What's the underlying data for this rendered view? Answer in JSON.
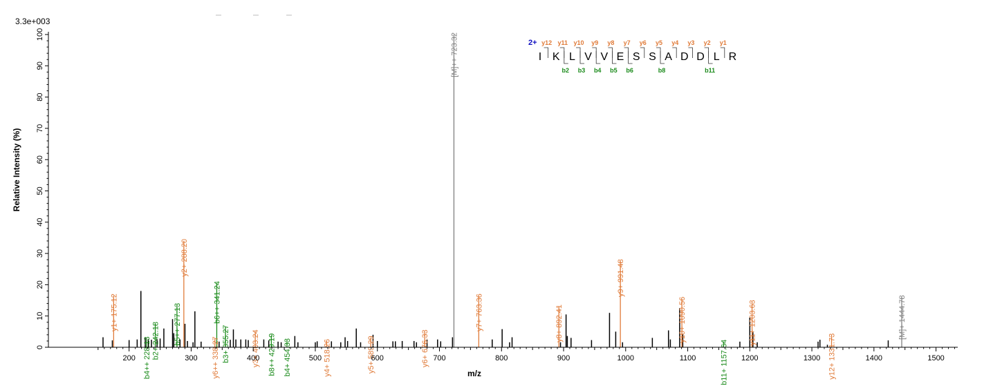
{
  "chart_data": {
    "type": "bar",
    "max_intensity_label": "3.3e+003",
    "xlabel": "m/z",
    "ylabel": "Relative   Intensity (%)",
    "xlim": [
      70,
      1535
    ],
    "ylim": [
      0,
      100
    ],
    "x_ticks": [
      200,
      300,
      400,
      500,
      600,
      700,
      800,
      900,
      1000,
      1100,
      1200,
      1300,
      1400,
      1500
    ],
    "y_ticks": [
      0,
      10,
      20,
      30,
      40,
      50,
      60,
      70,
      80,
      90,
      100
    ],
    "grid": false,
    "colors": {
      "y_ion": "#e07b39",
      "b_ion": "#1a8a1a",
      "precursor": "#808080",
      "other": "#000000"
    },
    "annotated_peaks": [
      {
        "mz": 175.12,
        "intensity": 16.5,
        "kind": "y",
        "label": "y1+ 175.12"
      },
      {
        "mz": 228.13,
        "intensity": 2.8,
        "kind": "b",
        "label": "b4++ 228.13"
      },
      {
        "mz": 242.18,
        "intensity": 7.5,
        "kind": "b",
        "label": "b2+ 242.18"
      },
      {
        "mz": 277.13,
        "intensity": 13.5,
        "kind": "b",
        "label": "b5++ 277.13"
      },
      {
        "mz": 288.2,
        "intensity": 34.0,
        "kind": "y",
        "label": "y2+ 288.20"
      },
      {
        "mz": 338.27,
        "intensity": 2.8,
        "kind": "y",
        "label": "y6++ 338.27"
      },
      {
        "mz": 341.24,
        "intensity": 20.5,
        "kind": "b",
        "label": "b6++ 341.24"
      },
      {
        "mz": 355.27,
        "intensity": 6.5,
        "kind": "b",
        "label": "b3+ 355.27"
      },
      {
        "mz": 403.24,
        "intensity": 5.0,
        "kind": "y",
        "label": "y3+ 403.24"
      },
      {
        "mz": 429.19,
        "intensity": 3.8,
        "kind": "b",
        "label": "b8++ 429.19"
      },
      {
        "mz": 454.33,
        "intensity": 2.2,
        "kind": "b",
        "label": "b4+ 454.33"
      },
      {
        "mz": 518.26,
        "intensity": 2.0,
        "kind": "y",
        "label": "y4+ 518.26"
      },
      {
        "mz": 589.29,
        "intensity": 3.0,
        "kind": "y",
        "label": "y5+ 589.29"
      },
      {
        "mz": 676.33,
        "intensity": 5.0,
        "kind": "y",
        "label": "y6+ 676.33"
      },
      {
        "mz": 723.32,
        "intensity": 100,
        "kind": "precursor",
        "label": "[M]++ 723.32"
      },
      {
        "mz": 763.36,
        "intensity": 16.5,
        "kind": "y",
        "label": "y7+ 763.36"
      },
      {
        "mz": 892.41,
        "intensity": 13.0,
        "kind": "y",
        "label": "y8+ 892.41"
      },
      {
        "mz": 991.48,
        "intensity": 27.5,
        "kind": "y",
        "label": "y9+ 991.48"
      },
      {
        "mz": 1090.56,
        "intensity": 15.5,
        "kind": "y",
        "label": "y10+ 1090.56"
      },
      {
        "mz": 1157.64,
        "intensity": 1.8,
        "kind": "b",
        "label": "b11+ 1157.64"
      },
      {
        "mz": 1203.63,
        "intensity": 14.5,
        "kind": "y",
        "label": "y11+ 1203.63"
      },
      {
        "mz": 1331.73,
        "intensity": 3.8,
        "kind": "y",
        "label": "y12+ 1331.73"
      },
      {
        "mz": 1444.78,
        "intensity": 16.0,
        "kind": "precursor",
        "label": "[M]+ 1444.78"
      }
    ],
    "other_peaks": [
      {
        "mz": 158,
        "intensity": 3.2
      },
      {
        "mz": 173,
        "intensity": 2.2
      },
      {
        "mz": 200,
        "intensity": 2.3
      },
      {
        "mz": 213,
        "intensity": 2.5
      },
      {
        "mz": 219,
        "intensity": 18.0
      },
      {
        "mz": 226,
        "intensity": 3.0
      },
      {
        "mz": 231,
        "intensity": 2.6
      },
      {
        "mz": 236,
        "intensity": 2.4
      },
      {
        "mz": 245,
        "intensity": 2.6
      },
      {
        "mz": 250,
        "intensity": 2.8
      },
      {
        "mz": 256,
        "intensity": 6.0
      },
      {
        "mz": 270,
        "intensity": 9.0
      },
      {
        "mz": 272,
        "intensity": 4.5
      },
      {
        "mz": 282,
        "intensity": 2.5
      },
      {
        "mz": 290,
        "intensity": 7.5
      },
      {
        "mz": 294,
        "intensity": 2.0
      },
      {
        "mz": 303,
        "intensity": 1.6
      },
      {
        "mz": 306,
        "intensity": 11.5
      },
      {
        "mz": 316,
        "intensity": 1.8
      },
      {
        "mz": 345,
        "intensity": 1.8
      },
      {
        "mz": 363,
        "intensity": 2.4
      },
      {
        "mz": 368,
        "intensity": 5.7
      },
      {
        "mz": 372,
        "intensity": 2.5
      },
      {
        "mz": 380,
        "intensity": 2.5
      },
      {
        "mz": 388,
        "intensity": 2.5
      },
      {
        "mz": 392,
        "intensity": 2.3
      },
      {
        "mz": 417,
        "intensity": 2.5
      },
      {
        "mz": 425,
        "intensity": 2.2
      },
      {
        "mz": 440,
        "intensity": 1.8
      },
      {
        "mz": 445,
        "intensity": 1.6
      },
      {
        "mz": 467,
        "intensity": 3.6
      },
      {
        "mz": 472,
        "intensity": 1.6
      },
      {
        "mz": 500,
        "intensity": 1.6
      },
      {
        "mz": 503,
        "intensity": 1.9
      },
      {
        "mz": 526,
        "intensity": 1.9
      },
      {
        "mz": 541,
        "intensity": 1.6
      },
      {
        "mz": 548,
        "intensity": 3.2
      },
      {
        "mz": 552,
        "intensity": 2.0
      },
      {
        "mz": 566,
        "intensity": 6.0
      },
      {
        "mz": 573,
        "intensity": 1.6
      },
      {
        "mz": 593,
        "intensity": 4.0
      },
      {
        "mz": 600,
        "intensity": 2.0
      },
      {
        "mz": 625,
        "intensity": 1.9
      },
      {
        "mz": 629,
        "intensity": 1.9
      },
      {
        "mz": 640,
        "intensity": 2.0
      },
      {
        "mz": 659,
        "intensity": 2.0
      },
      {
        "mz": 663,
        "intensity": 1.6
      },
      {
        "mz": 680,
        "intensity": 2.4
      },
      {
        "mz": 697,
        "intensity": 2.5
      },
      {
        "mz": 702,
        "intensity": 1.9
      },
      {
        "mz": 721,
        "intensity": 3.2
      },
      {
        "mz": 785,
        "intensity": 2.5
      },
      {
        "mz": 801,
        "intensity": 5.8
      },
      {
        "mz": 813,
        "intensity": 1.6
      },
      {
        "mz": 817,
        "intensity": 3.2
      },
      {
        "mz": 895,
        "intensity": 1.6
      },
      {
        "mz": 904,
        "intensity": 10.5
      },
      {
        "mz": 906,
        "intensity": 3.6
      },
      {
        "mz": 912,
        "intensity": 3.0
      },
      {
        "mz": 945,
        "intensity": 2.3
      },
      {
        "mz": 974,
        "intensity": 11.0
      },
      {
        "mz": 984,
        "intensity": 5.0
      },
      {
        "mz": 995,
        "intensity": 1.6
      },
      {
        "mz": 1043,
        "intensity": 3.0
      },
      {
        "mz": 1069,
        "intensity": 5.4
      },
      {
        "mz": 1072,
        "intensity": 2.5
      },
      {
        "mz": 1087,
        "intensity": 12.5
      },
      {
        "mz": 1092,
        "intensity": 4.3
      },
      {
        "mz": 1184,
        "intensity": 1.8
      },
      {
        "mz": 1200,
        "intensity": 9.5
      },
      {
        "mz": 1205,
        "intensity": 4.8
      },
      {
        "mz": 1212,
        "intensity": 1.6
      },
      {
        "mz": 1310,
        "intensity": 1.8
      },
      {
        "mz": 1313,
        "intensity": 2.4
      },
      {
        "mz": 1325,
        "intensity": 0.8
      },
      {
        "mz": 1423,
        "intensity": 2.2
      }
    ],
    "peptide": {
      "charge_label": "2+",
      "sequence": [
        "I",
        "K",
        "L",
        "V",
        "V",
        "E",
        "S",
        "S",
        "A",
        "D",
        "D",
        "L",
        "R"
      ],
      "y_labels": [
        {
          "after_index": 0,
          "label": "y12"
        },
        {
          "after_index": 1,
          "label": "y11"
        },
        {
          "after_index": 2,
          "label": "y10"
        },
        {
          "after_index": 3,
          "label": "y9"
        },
        {
          "after_index": 4,
          "label": "y8"
        },
        {
          "after_index": 5,
          "label": "y7"
        },
        {
          "after_index": 6,
          "label": "y6"
        },
        {
          "after_index": 7,
          "label": "y5"
        },
        {
          "after_index": 8,
          "label": "y4"
        },
        {
          "after_index": 9,
          "label": "y3"
        },
        {
          "after_index": 10,
          "label": "y2"
        },
        {
          "after_index": 11,
          "label": "y1"
        }
      ],
      "b_labels": [
        {
          "after_index": 1,
          "label": "b2"
        },
        {
          "after_index": 2,
          "label": "b3"
        },
        {
          "after_index": 3,
          "label": "b4"
        },
        {
          "after_index": 4,
          "label": "b5"
        },
        {
          "after_index": 5,
          "label": "b6"
        },
        {
          "after_index": 7,
          "label": "b8"
        },
        {
          "after_index": 10,
          "label": "b11"
        }
      ]
    }
  }
}
